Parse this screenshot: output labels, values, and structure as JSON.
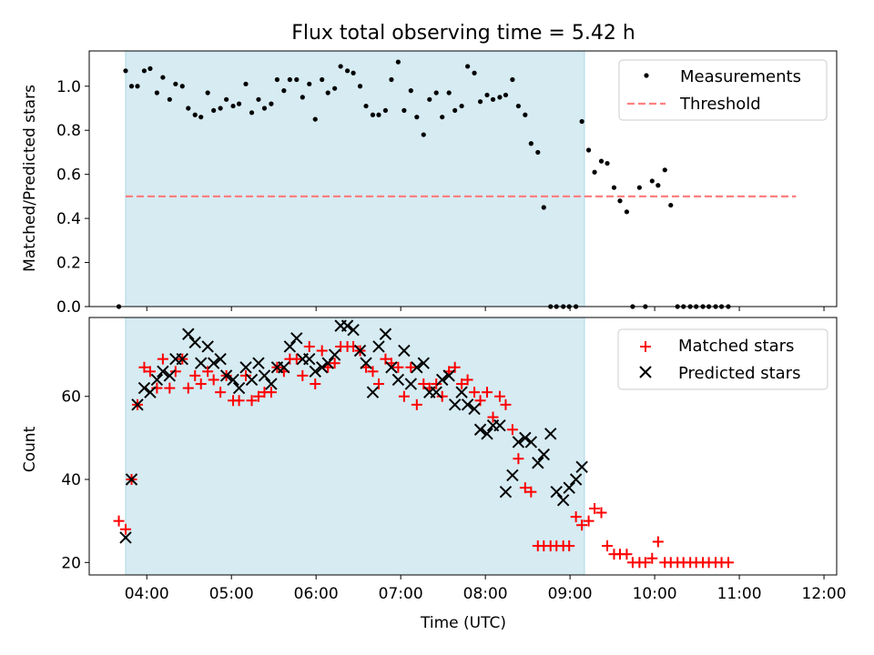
{
  "title": "Flux total observing time = 5.42 h",
  "colors": {
    "shade": "#add8e6",
    "measurement": "#000000",
    "threshold": "#ff7f7f",
    "matched": "#ff0000",
    "predicted": "#000000"
  },
  "chart_data": [
    {
      "type": "scatter",
      "ylabel": "Matched/Predicted stars",
      "ylim": [
        0,
        1.16
      ],
      "yticks": [
        "0.0",
        "0.2",
        "0.4",
        "0.6",
        "0.8",
        "1.0"
      ],
      "shaded_span_hours": [
        3.75,
        9.17
      ],
      "legend": {
        "position": "top-right",
        "measurements": "Measurements",
        "threshold": "Threshold"
      },
      "threshold": {
        "value": 0.5,
        "x_range": [
          3.75,
          11.67
        ]
      },
      "series": [
        {
          "name": "Measurements",
          "points": [
            [
              3.67,
              0.0
            ],
            [
              3.75,
              1.07
            ],
            [
              3.82,
              1.0
            ],
            [
              3.89,
              1.0
            ],
            [
              3.97,
              1.07
            ],
            [
              4.04,
              1.08
            ],
            [
              4.12,
              0.97
            ],
            [
              4.19,
              1.04
            ],
            [
              4.27,
              0.94
            ],
            [
              4.34,
              1.01
            ],
            [
              4.42,
              1.0
            ],
            [
              4.49,
              0.9
            ],
            [
              4.57,
              0.87
            ],
            [
              4.64,
              0.86
            ],
            [
              4.72,
              0.97
            ],
            [
              4.79,
              0.89
            ],
            [
              4.87,
              0.9
            ],
            [
              4.94,
              0.94
            ],
            [
              5.02,
              0.91
            ],
            [
              5.09,
              0.92
            ],
            [
              5.17,
              1.01
            ],
            [
              5.24,
              0.88
            ],
            [
              5.32,
              0.94
            ],
            [
              5.39,
              0.9
            ],
            [
              5.47,
              0.92
            ],
            [
              5.54,
              1.03
            ],
            [
              5.62,
              0.98
            ],
            [
              5.69,
              1.03
            ],
            [
              5.77,
              1.03
            ],
            [
              5.84,
              0.95
            ],
            [
              5.92,
              1.01
            ],
            [
              5.99,
              0.85
            ],
            [
              6.07,
              1.03
            ],
            [
              6.14,
              0.97
            ],
            [
              6.22,
              0.99
            ],
            [
              6.29,
              1.09
            ],
            [
              6.37,
              1.07
            ],
            [
              6.44,
              1.06
            ],
            [
              6.52,
              1.0
            ],
            [
              6.59,
              0.91
            ],
            [
              6.67,
              0.87
            ],
            [
              6.74,
              0.87
            ],
            [
              6.82,
              0.89
            ],
            [
              6.89,
              1.03
            ],
            [
              6.97,
              1.11
            ],
            [
              7.04,
              0.89
            ],
            [
              7.12,
              0.98
            ],
            [
              7.19,
              0.86
            ],
            [
              7.27,
              0.78
            ],
            [
              7.34,
              0.94
            ],
            [
              7.42,
              0.97
            ],
            [
              7.49,
              0.86
            ],
            [
              7.57,
              0.97
            ],
            [
              7.64,
              0.89
            ],
            [
              7.72,
              0.91
            ],
            [
              7.79,
              1.09
            ],
            [
              7.87,
              1.06
            ],
            [
              7.94,
              0.93
            ],
            [
              8.02,
              0.96
            ],
            [
              8.09,
              0.94
            ],
            [
              8.17,
              0.95
            ],
            [
              8.24,
              0.96
            ],
            [
              8.32,
              1.03
            ],
            [
              8.39,
              0.91
            ],
            [
              8.47,
              0.87
            ],
            [
              8.54,
              0.74
            ],
            [
              8.62,
              0.7
            ],
            [
              8.69,
              0.45
            ],
            [
              8.77,
              0.0
            ],
            [
              8.84,
              0.0
            ],
            [
              8.92,
              0.0
            ],
            [
              8.99,
              0.0
            ],
            [
              9.07,
              0.0
            ],
            [
              9.14,
              0.84
            ],
            [
              9.22,
              0.71
            ],
            [
              9.29,
              0.61
            ],
            [
              9.37,
              0.66
            ],
            [
              9.44,
              0.65
            ],
            [
              9.52,
              0.54
            ],
            [
              9.59,
              0.48
            ],
            [
              9.67,
              0.43
            ],
            [
              9.74,
              0.0
            ],
            [
              9.82,
              0.54
            ],
            [
              9.89,
              0.0
            ],
            [
              9.97,
              0.57
            ],
            [
              10.04,
              0.55
            ],
            [
              10.12,
              0.62
            ],
            [
              10.19,
              0.46
            ],
            [
              10.27,
              0.0
            ],
            [
              10.34,
              0.0
            ],
            [
              10.42,
              0.0
            ],
            [
              10.49,
              0.0
            ],
            [
              10.57,
              0.0
            ],
            [
              10.64,
              0.0
            ],
            [
              10.72,
              0.0
            ],
            [
              10.79,
              0.0
            ],
            [
              10.87,
              0.0
            ]
          ]
        }
      ]
    },
    {
      "type": "scatter",
      "xlabel": "Time (UTC)",
      "ylabel": "Count",
      "ylim": [
        17,
        79
      ],
      "yticks": [
        "20",
        "40",
        "60"
      ],
      "xlim_hours": [
        3.32,
        12.15
      ],
      "xticks": [
        "04:00",
        "05:00",
        "06:00",
        "07:00",
        "08:00",
        "09:00",
        "10:00",
        "11:00",
        "12:00"
      ],
      "shaded_span_hours": [
        3.75,
        9.17
      ],
      "legend": {
        "position": "top-right",
        "matched": "Matched stars",
        "predicted": "Predicted stars"
      },
      "series": [
        {
          "name": "Matched stars",
          "points": [
            [
              3.67,
              30
            ],
            [
              3.75,
              28
            ],
            [
              3.82,
              40
            ],
            [
              3.89,
              58
            ],
            [
              3.97,
              67
            ],
            [
              4.04,
              66
            ],
            [
              4.12,
              62
            ],
            [
              4.19,
              69
            ],
            [
              4.27,
              62
            ],
            [
              4.34,
              66
            ],
            [
              4.42,
              69
            ],
            [
              4.49,
              62
            ],
            [
              4.57,
              65
            ],
            [
              4.64,
              63
            ],
            [
              4.72,
              66
            ],
            [
              4.79,
              64
            ],
            [
              4.87,
              61
            ],
            [
              4.94,
              65
            ],
            [
              5.02,
              59
            ],
            [
              5.09,
              59
            ],
            [
              5.17,
              65
            ],
            [
              5.24,
              59
            ],
            [
              5.32,
              60
            ],
            [
              5.39,
              61
            ],
            [
              5.47,
              61
            ],
            [
              5.54,
              67
            ],
            [
              5.62,
              66
            ],
            [
              5.69,
              69
            ],
            [
              5.77,
              69
            ],
            [
              5.84,
              65
            ],
            [
              5.92,
              72
            ],
            [
              5.99,
              63
            ],
            [
              6.07,
              71
            ],
            [
              6.14,
              67
            ],
            [
              6.22,
              68
            ],
            [
              6.29,
              72
            ],
            [
              6.37,
              72
            ],
            [
              6.44,
              72
            ],
            [
              6.52,
              71
            ],
            [
              6.59,
              67
            ],
            [
              6.67,
              66
            ],
            [
              6.74,
              63
            ],
            [
              6.82,
              69
            ],
            [
              6.89,
              68
            ],
            [
              6.97,
              67
            ],
            [
              7.04,
              60
            ],
            [
              7.12,
              67
            ],
            [
              7.19,
              58
            ],
            [
              7.27,
              63
            ],
            [
              7.34,
              62
            ],
            [
              7.42,
              63
            ],
            [
              7.49,
              60
            ],
            [
              7.57,
              66
            ],
            [
              7.64,
              67
            ],
            [
              7.72,
              63
            ],
            [
              7.79,
              64
            ],
            [
              7.87,
              61
            ],
            [
              7.94,
              59
            ],
            [
              8.02,
              61
            ],
            [
              8.09,
              55
            ],
            [
              8.17,
              60
            ],
            [
              8.24,
              58
            ],
            [
              8.32,
              52
            ],
            [
              8.39,
              45
            ],
            [
              8.47,
              38
            ],
            [
              8.54,
              37
            ],
            [
              8.62,
              24
            ],
            [
              8.69,
              24
            ],
            [
              8.77,
              24
            ],
            [
              8.84,
              24
            ],
            [
              8.92,
              24
            ],
            [
              8.99,
              24
            ],
            [
              9.07,
              31
            ],
            [
              9.14,
              29
            ],
            [
              9.22,
              30
            ],
            [
              9.29,
              33
            ],
            [
              9.37,
              32
            ],
            [
              9.44,
              24
            ],
            [
              9.52,
              22
            ],
            [
              9.59,
              22
            ],
            [
              9.67,
              22
            ],
            [
              9.74,
              20
            ],
            [
              9.82,
              20
            ],
            [
              9.89,
              20
            ],
            [
              9.97,
              21
            ],
            [
              10.04,
              25
            ],
            [
              10.12,
              20
            ],
            [
              10.19,
              20
            ],
            [
              10.27,
              20
            ],
            [
              10.34,
              20
            ],
            [
              10.42,
              20
            ],
            [
              10.49,
              20
            ],
            [
              10.57,
              20
            ],
            [
              10.64,
              20
            ],
            [
              10.72,
              20
            ],
            [
              10.79,
              20
            ],
            [
              10.87,
              20
            ]
          ]
        },
        {
          "name": "Predicted stars",
          "points": [
            [
              3.75,
              26
            ],
            [
              3.82,
              40
            ],
            [
              3.89,
              58
            ],
            [
              3.97,
              62
            ],
            [
              4.04,
              61
            ],
            [
              4.12,
              64
            ],
            [
              4.19,
              66
            ],
            [
              4.27,
              65
            ],
            [
              4.34,
              69
            ],
            [
              4.42,
              69
            ],
            [
              4.49,
              75
            ],
            [
              4.57,
              73
            ],
            [
              4.64,
              68
            ],
            [
              4.72,
              72
            ],
            [
              4.79,
              68
            ],
            [
              4.87,
              69
            ],
            [
              4.94,
              65
            ],
            [
              5.02,
              64
            ],
            [
              5.09,
              62
            ],
            [
              5.17,
              67
            ],
            [
              5.24,
              64
            ],
            [
              5.32,
              68
            ],
            [
              5.39,
              65
            ],
            [
              5.47,
              63
            ],
            [
              5.54,
              67
            ],
            [
              5.62,
              67
            ],
            [
              5.69,
              72
            ],
            [
              5.77,
              74
            ],
            [
              5.84,
              69
            ],
            [
              5.92,
              69
            ],
            [
              5.99,
              66
            ],
            [
              6.07,
              67
            ],
            [
              6.14,
              68
            ],
            [
              6.22,
              70
            ],
            [
              6.29,
              77
            ],
            [
              6.37,
              77
            ],
            [
              6.44,
              76
            ],
            [
              6.52,
              71
            ],
            [
              6.59,
              68
            ],
            [
              6.67,
              61
            ],
            [
              6.74,
              72
            ],
            [
              6.82,
              75
            ],
            [
              6.89,
              67
            ],
            [
              6.97,
              64
            ],
            [
              7.04,
              71
            ],
            [
              7.12,
              63
            ],
            [
              7.19,
              67
            ],
            [
              7.27,
              68
            ],
            [
              7.34,
              61
            ],
            [
              7.42,
              61
            ],
            [
              7.49,
              64
            ],
            [
              7.57,
              65
            ],
            [
              7.64,
              58
            ],
            [
              7.72,
              61
            ],
            [
              7.79,
              58
            ],
            [
              7.87,
              57
            ],
            [
              7.94,
              52
            ],
            [
              8.02,
              51
            ],
            [
              8.09,
              53
            ],
            [
              8.17,
              53
            ],
            [
              8.24,
              37
            ],
            [
              8.32,
              41
            ],
            [
              8.39,
              49
            ],
            [
              8.47,
              50
            ],
            [
              8.54,
              49
            ],
            [
              8.62,
              44
            ],
            [
              8.69,
              46
            ],
            [
              8.77,
              51
            ],
            [
              8.84,
              37
            ],
            [
              8.92,
              35
            ],
            [
              8.99,
              38
            ],
            [
              9.07,
              40
            ],
            [
              9.14,
              43
            ]
          ]
        }
      ]
    }
  ]
}
